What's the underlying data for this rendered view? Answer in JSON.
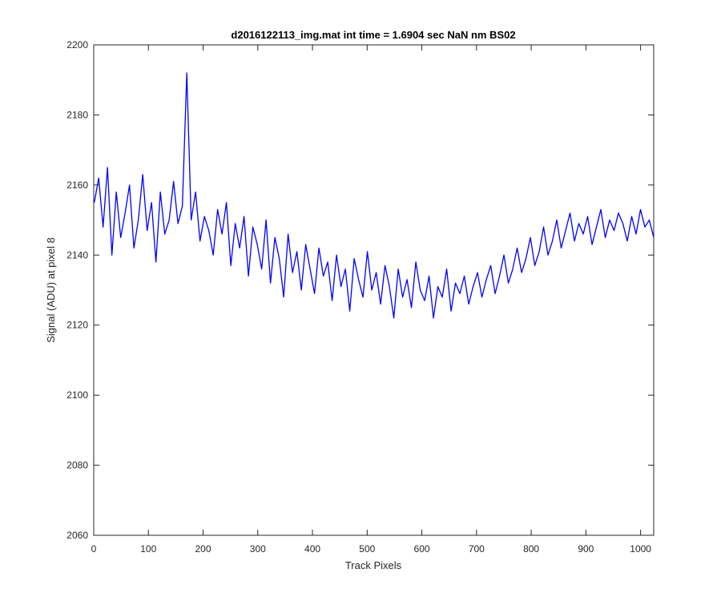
{
  "chart_data": {
    "type": "line",
    "title": "d2016122113_img.mat int time = 1.6904 sec  NaN nm BS02",
    "xlabel": "Track Pixels",
    "ylabel": "Signal (ADU) at pixel 8",
    "xlim": [
      0,
      1024
    ],
    "ylim": [
      2060,
      2200
    ],
    "xticks": [
      0,
      100,
      200,
      300,
      400,
      500,
      600,
      700,
      800,
      900,
      1000
    ],
    "yticks": [
      2060,
      2080,
      2100,
      2120,
      2140,
      2160,
      2180,
      2200
    ],
    "grid": false,
    "legend": "none",
    "series": [
      {
        "color": "#0000ff",
        "x_start": 1,
        "x_step": 1,
        "description_points": "approx. envelope of noisy signal sampled every 8 pixels",
        "values": [
          2155,
          2162,
          2148,
          2165,
          2140,
          2158,
          2145,
          2152,
          2160,
          2142,
          2150,
          2163,
          2147,
          2155,
          2138,
          2158,
          2146,
          2150,
          2161,
          2149,
          2154,
          2192,
          2150,
          2158,
          2144,
          2151,
          2147,
          2140,
          2153,
          2146,
          2155,
          2137,
          2149,
          2142,
          2151,
          2134,
          2148,
          2143,
          2136,
          2150,
          2132,
          2145,
          2139,
          2128,
          2146,
          2135,
          2141,
          2130,
          2143,
          2136,
          2129,
          2142,
          2134,
          2138,
          2127,
          2140,
          2131,
          2136,
          2124,
          2139,
          2133,
          2128,
          2141,
          2130,
          2135,
          2126,
          2137,
          2131,
          2122,
          2136,
          2128,
          2133,
          2125,
          2138,
          2130,
          2127,
          2134,
          2122,
          2131,
          2128,
          2136,
          2124,
          2132,
          2129,
          2134,
          2126,
          2131,
          2135,
          2128,
          2133,
          2137,
          2129,
          2134,
          2140,
          2132,
          2136,
          2142,
          2135,
          2139,
          2145,
          2137,
          2141,
          2148,
          2140,
          2144,
          2150,
          2142,
          2147,
          2152,
          2144,
          2149,
          2146,
          2151,
          2143,
          2148,
          2153,
          2145,
          2150,
          2147,
          2152,
          2149,
          2144,
          2151,
          2146,
          2153,
          2148,
          2150,
          2145
        ]
      }
    ]
  }
}
